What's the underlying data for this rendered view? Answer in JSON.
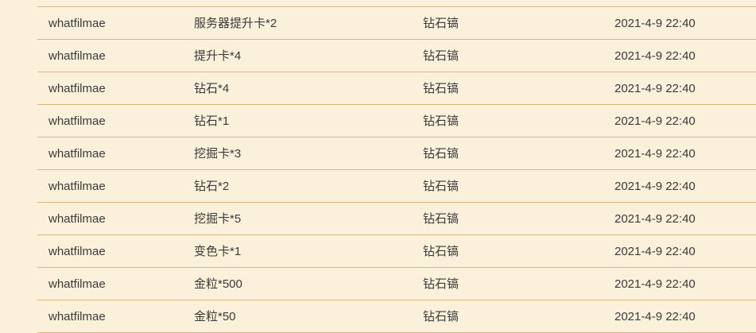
{
  "records": [
    {
      "user": "whatfilmae",
      "item": "服务器提升卡*2",
      "tool": "钻石镐",
      "time": "2021-4-9 22:40"
    },
    {
      "user": "whatfilmae",
      "item": "提升卡*4",
      "tool": "钻石镐",
      "time": "2021-4-9 22:40"
    },
    {
      "user": "whatfilmae",
      "item": "钻石*4",
      "tool": "钻石镐",
      "time": "2021-4-9 22:40"
    },
    {
      "user": "whatfilmae",
      "item": "钻石*1",
      "tool": "钻石镐",
      "time": "2021-4-9 22:40"
    },
    {
      "user": "whatfilmae",
      "item": "挖掘卡*3",
      "tool": "钻石镐",
      "time": "2021-4-9 22:40"
    },
    {
      "user": "whatfilmae",
      "item": "钻石*2",
      "tool": "钻石镐",
      "time": "2021-4-9 22:40"
    },
    {
      "user": "whatfilmae",
      "item": "挖掘卡*5",
      "tool": "钻石镐",
      "time": "2021-4-9 22:40"
    },
    {
      "user": "whatfilmae",
      "item": "变色卡*1",
      "tool": "钻石镐",
      "time": "2021-4-9 22:40"
    },
    {
      "user": "whatfilmae",
      "item": "金粒*500",
      "tool": "钻石镐",
      "time": "2021-4-9 22:40"
    },
    {
      "user": "whatfilmae",
      "item": "金粒*50",
      "tool": "钻石镐",
      "time": "2021-4-9 22:40"
    }
  ]
}
